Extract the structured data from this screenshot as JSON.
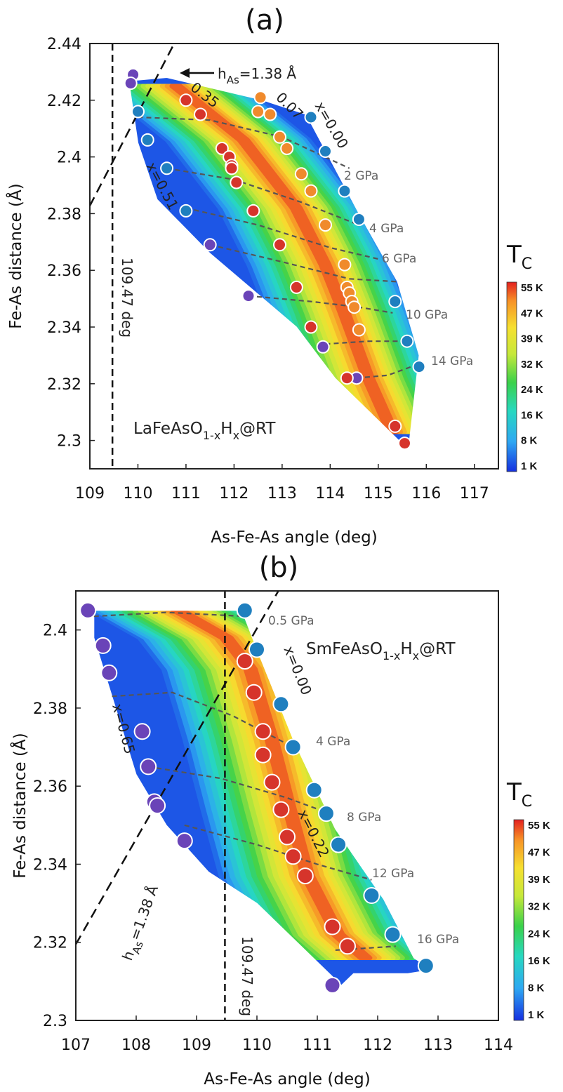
{
  "chart_data": [
    {
      "type": "heatmap",
      "panel_label": "(a)",
      "xlabel": "As-Fe-As angle (deg)",
      "ylabel": "Fe-As distance (Å)",
      "xlim": [
        109,
        117.5
      ],
      "ylim": [
        2.29,
        2.44
      ],
      "xticks": [
        "109",
        "110",
        "111",
        "112",
        "113",
        "114",
        "115",
        "116",
        "117"
      ],
      "yticks": [
        "2.3",
        "2.32",
        "2.34",
        "2.36",
        "2.38",
        "2.4",
        "2.42",
        "2.44"
      ],
      "sample": "LaFeAsO",
      "sample_sub": "1-x",
      "sample_mid": "H",
      "sample_sub2": "x",
      "sample_end": "@RT",
      "colorbar_title": "T",
      "colorbar_sub": "C",
      "colorbar_ticks": [
        "55 K",
        "47 K",
        "39 K",
        "32 K",
        "24 K",
        "16 K",
        "8 K",
        "1 K"
      ],
      "tetrahedral_label": "109.47 deg",
      "has_pre": "h",
      "has_sub": "As",
      "has_post": "=1.38 Å",
      "labels": {
        "x_low": "0.35",
        "x_mid": "0.07",
        "x_zero": "x=0.00",
        "x_high": "x=0.51"
      },
      "pressures": [
        "2 GPa",
        "4 GPa",
        "6 GPa",
        "10 GPa",
        "14 GPa"
      ],
      "region": [
        [
          109.95,
          2.427
        ],
        [
          110.6,
          2.428
        ],
        [
          112.6,
          2.42
        ],
        [
          113.5,
          2.415
        ],
        [
          114.6,
          2.38
        ],
        [
          115.4,
          2.356
        ],
        [
          115.85,
          2.33
        ],
        [
          115.65,
          2.3
        ],
        [
          115.55,
          2.298
        ],
        [
          114.1,
          2.322
        ],
        [
          113.3,
          2.34
        ],
        [
          111.5,
          2.366
        ],
        [
          110.4,
          2.385
        ],
        [
          110.0,
          2.405
        ],
        [
          109.8,
          2.428
        ]
      ],
      "ridge": [
        [
          110.8,
          2.425
        ],
        [
          112.2,
          2.406
        ],
        [
          113.3,
          2.382
        ],
        [
          113.9,
          2.362
        ],
        [
          114.3,
          2.345
        ],
        [
          114.8,
          2.322
        ],
        [
          115.3,
          2.303
        ]
      ],
      "ridge_halfwidth": 1.6,
      "points": [
        {
          "x": 109.9,
          "y": 2.429,
          "tc": "purple"
        },
        {
          "x": 109.85,
          "y": 2.426,
          "tc": "purple"
        },
        {
          "x": 110.0,
          "y": 2.416,
          "tc": "blue"
        },
        {
          "x": 110.2,
          "y": 2.406,
          "tc": "blue"
        },
        {
          "x": 110.6,
          "y": 2.396,
          "tc": "blue"
        },
        {
          "x": 111.0,
          "y": 2.381,
          "tc": "blue"
        },
        {
          "x": 111.5,
          "y": 2.369,
          "tc": "purple"
        },
        {
          "x": 112.3,
          "y": 2.351,
          "tc": "purple"
        },
        {
          "x": 113.85,
          "y": 2.333,
          "tc": "purple"
        },
        {
          "x": 114.55,
          "y": 2.322,
          "tc": "purple"
        },
        {
          "x": 111.0,
          "y": 2.42,
          "tc": "red"
        },
        {
          "x": 111.3,
          "y": 2.415,
          "tc": "red"
        },
        {
          "x": 111.75,
          "y": 2.403,
          "tc": "red"
        },
        {
          "x": 111.9,
          "y": 2.4,
          "tc": "red"
        },
        {
          "x": 111.95,
          "y": 2.397,
          "tc": "red"
        },
        {
          "x": 111.95,
          "y": 2.396,
          "tc": "red"
        },
        {
          "x": 112.05,
          "y": 2.391,
          "tc": "red"
        },
        {
          "x": 112.4,
          "y": 2.381,
          "tc": "red"
        },
        {
          "x": 112.95,
          "y": 2.369,
          "tc": "red"
        },
        {
          "x": 113.3,
          "y": 2.354,
          "tc": "red"
        },
        {
          "x": 113.6,
          "y": 2.34,
          "tc": "red"
        },
        {
          "x": 114.35,
          "y": 2.322,
          "tc": "red"
        },
        {
          "x": 115.35,
          "y": 2.305,
          "tc": "red"
        },
        {
          "x": 115.55,
          "y": 2.299,
          "tc": "red"
        },
        {
          "x": 112.55,
          "y": 2.421,
          "tc": "orange"
        },
        {
          "x": 112.75,
          "y": 2.415,
          "tc": "orange"
        },
        {
          "x": 112.5,
          "y": 2.416,
          "tc": "orange"
        },
        {
          "x": 112.95,
          "y": 2.407,
          "tc": "orange"
        },
        {
          "x": 113.1,
          "y": 2.403,
          "tc": "orange"
        },
        {
          "x": 113.4,
          "y": 2.394,
          "tc": "orange"
        },
        {
          "x": 113.6,
          "y": 2.388,
          "tc": "orange"
        },
        {
          "x": 113.9,
          "y": 2.376,
          "tc": "orange"
        },
        {
          "x": 114.3,
          "y": 2.362,
          "tc": "orange"
        },
        {
          "x": 114.35,
          "y": 2.354,
          "tc": "orange"
        },
        {
          "x": 114.4,
          "y": 2.352,
          "tc": "orange"
        },
        {
          "x": 114.45,
          "y": 2.349,
          "tc": "orange"
        },
        {
          "x": 114.5,
          "y": 2.347,
          "tc": "orange"
        },
        {
          "x": 114.6,
          "y": 2.339,
          "tc": "orange"
        },
        {
          "x": 113.6,
          "y": 2.414,
          "tc": "blue"
        },
        {
          "x": 113.9,
          "y": 2.402,
          "tc": "blue"
        },
        {
          "x": 114.3,
          "y": 2.388,
          "tc": "blue"
        },
        {
          "x": 114.6,
          "y": 2.378,
          "tc": "blue"
        },
        {
          "x": 115.35,
          "y": 2.349,
          "tc": "blue"
        },
        {
          "x": 115.6,
          "y": 2.335,
          "tc": "blue"
        },
        {
          "x": 115.85,
          "y": 2.326,
          "tc": "blue"
        }
      ],
      "isobars": [
        [
          [
            110.0,
            2.414
          ],
          [
            111.5,
            2.413
          ],
          [
            113.0,
            2.407
          ],
          [
            114.4,
            2.396
          ]
        ],
        [
          [
            110.6,
            2.396
          ],
          [
            112.0,
            2.392
          ],
          [
            113.4,
            2.384
          ],
          [
            114.6,
            2.376
          ]
        ],
        [
          [
            111.0,
            2.382
          ],
          [
            112.5,
            2.376
          ],
          [
            114.0,
            2.368
          ],
          [
            115.0,
            2.364
          ]
        ],
        [
          [
            111.5,
            2.369
          ],
          [
            113.0,
            2.363
          ],
          [
            114.4,
            2.357
          ],
          [
            115.4,
            2.356
          ]
        ],
        [
          [
            112.3,
            2.351
          ],
          [
            113.6,
            2.349
          ],
          [
            114.6,
            2.347
          ],
          [
            115.3,
            2.345
          ]
        ],
        [
          [
            113.9,
            2.334
          ],
          [
            114.8,
            2.335
          ],
          [
            115.55,
            2.335
          ]
        ],
        [
          [
            114.55,
            2.322
          ],
          [
            115.2,
            2.323
          ],
          [
            115.85,
            2.327
          ]
        ]
      ]
    },
    {
      "type": "heatmap",
      "panel_label": "(b)",
      "xlabel": "As-Fe-As angle (deg)",
      "ylabel": "Fe-As distance (Å)",
      "xlim": [
        107,
        114
      ],
      "ylim": [
        2.3,
        2.41
      ],
      "xticks": [
        "107",
        "108",
        "109",
        "110",
        "111",
        "112",
        "113",
        "114"
      ],
      "yticks": [
        "2.3",
        "2.32",
        "2.34",
        "2.36",
        "2.38",
        "2.4"
      ],
      "sample": "SmFeAsO",
      "sample_sub": "1-x",
      "sample_mid": "H",
      "sample_sub2": "x",
      "sample_end": "@RT",
      "colorbar_title": "T",
      "colorbar_sub": "C",
      "colorbar_ticks": [
        "55 K",
        "47 K",
        "39 K",
        "32 K",
        "24 K",
        "16 K",
        "8 K",
        "1 K"
      ],
      "tetrahedral_label": "109.47 deg",
      "has_pre": "h",
      "has_sub": "As",
      "has_post": "=1.38 Å",
      "labels": {
        "x_zero": "x=0.00",
        "x_mid": "x=0.22",
        "x_high": "x=0.65"
      },
      "pressures": [
        "0.5 GPa",
        "4 GPa",
        "8 GPa",
        "12 GPa",
        "16 GPa"
      ],
      "region": [
        [
          107.3,
          2.405
        ],
        [
          109.75,
          2.405
        ],
        [
          110.0,
          2.395
        ],
        [
          110.6,
          2.372
        ],
        [
          111.3,
          2.349
        ],
        [
          112.1,
          2.331
        ],
        [
          112.6,
          2.316
        ],
        [
          112.9,
          2.313
        ],
        [
          112.5,
          2.312
        ],
        [
          111.6,
          2.312
        ],
        [
          111.4,
          2.309
        ],
        [
          110.0,
          2.33
        ],
        [
          109.2,
          2.338
        ],
        [
          108.5,
          2.35
        ],
        [
          108.0,
          2.363
        ],
        [
          107.6,
          2.383
        ],
        [
          107.3,
          2.398
        ]
      ],
      "ridge": [
        [
          108.7,
          2.405
        ],
        [
          109.5,
          2.398
        ],
        [
          109.9,
          2.39
        ],
        [
          110.25,
          2.372
        ],
        [
          110.55,
          2.354
        ],
        [
          110.85,
          2.337
        ],
        [
          111.35,
          2.322
        ],
        [
          111.8,
          2.316
        ]
      ],
      "ridge_halfwidth": 1.45,
      "points": [
        {
          "x": 107.2,
          "y": 2.405,
          "tc": "purple"
        },
        {
          "x": 107.45,
          "y": 2.396,
          "tc": "purple"
        },
        {
          "x": 107.55,
          "y": 2.389,
          "tc": "purple"
        },
        {
          "x": 108.1,
          "y": 2.374,
          "tc": "purple"
        },
        {
          "x": 108.2,
          "y": 2.365,
          "tc": "purple"
        },
        {
          "x": 108.3,
          "y": 2.356,
          "tc": "purple"
        },
        {
          "x": 108.35,
          "y": 2.355,
          "tc": "purple"
        },
        {
          "x": 108.8,
          "y": 2.346,
          "tc": "purple"
        },
        {
          "x": 111.25,
          "y": 2.309,
          "tc": "purple"
        },
        {
          "x": 109.8,
          "y": 2.392,
          "tc": "red"
        },
        {
          "x": 109.95,
          "y": 2.384,
          "tc": "red"
        },
        {
          "x": 110.1,
          "y": 2.374,
          "tc": "red"
        },
        {
          "x": 110.1,
          "y": 2.368,
          "tc": "red"
        },
        {
          "x": 110.25,
          "y": 2.361,
          "tc": "red"
        },
        {
          "x": 110.4,
          "y": 2.354,
          "tc": "red"
        },
        {
          "x": 110.5,
          "y": 2.347,
          "tc": "red"
        },
        {
          "x": 110.6,
          "y": 2.342,
          "tc": "red"
        },
        {
          "x": 110.8,
          "y": 2.337,
          "tc": "red"
        },
        {
          "x": 111.25,
          "y": 2.324,
          "tc": "red"
        },
        {
          "x": 111.5,
          "y": 2.319,
          "tc": "red"
        },
        {
          "x": 109.8,
          "y": 2.405,
          "tc": "blue"
        },
        {
          "x": 110.0,
          "y": 2.395,
          "tc": "blue"
        },
        {
          "x": 110.4,
          "y": 2.381,
          "tc": "blue"
        },
        {
          "x": 110.6,
          "y": 2.37,
          "tc": "blue"
        },
        {
          "x": 110.95,
          "y": 2.359,
          "tc": "blue"
        },
        {
          "x": 111.15,
          "y": 2.353,
          "tc": "blue"
        },
        {
          "x": 111.35,
          "y": 2.345,
          "tc": "blue"
        },
        {
          "x": 111.9,
          "y": 2.332,
          "tc": "blue"
        },
        {
          "x": 112.25,
          "y": 2.322,
          "tc": "blue"
        },
        {
          "x": 112.8,
          "y": 2.314,
          "tc": "blue"
        }
      ],
      "isobars": [
        [
          [
            107.3,
            2.4035
          ],
          [
            108.5,
            2.4045
          ],
          [
            109.8,
            2.4035
          ]
        ],
        [
          [
            107.6,
            2.383
          ],
          [
            108.6,
            2.384
          ],
          [
            109.6,
            2.378
          ],
          [
            110.6,
            2.37
          ]
        ],
        [
          [
            108.2,
            2.365
          ],
          [
            109.4,
            2.362
          ],
          [
            110.5,
            2.357
          ],
          [
            111.2,
            2.353
          ]
        ],
        [
          [
            108.8,
            2.35
          ],
          [
            110.0,
            2.345
          ],
          [
            111.0,
            2.34
          ],
          [
            111.9,
            2.336
          ]
        ],
        [
          [
            111.3,
            2.318
          ],
          [
            112.3,
            2.319
          ]
        ]
      ]
    }
  ]
}
